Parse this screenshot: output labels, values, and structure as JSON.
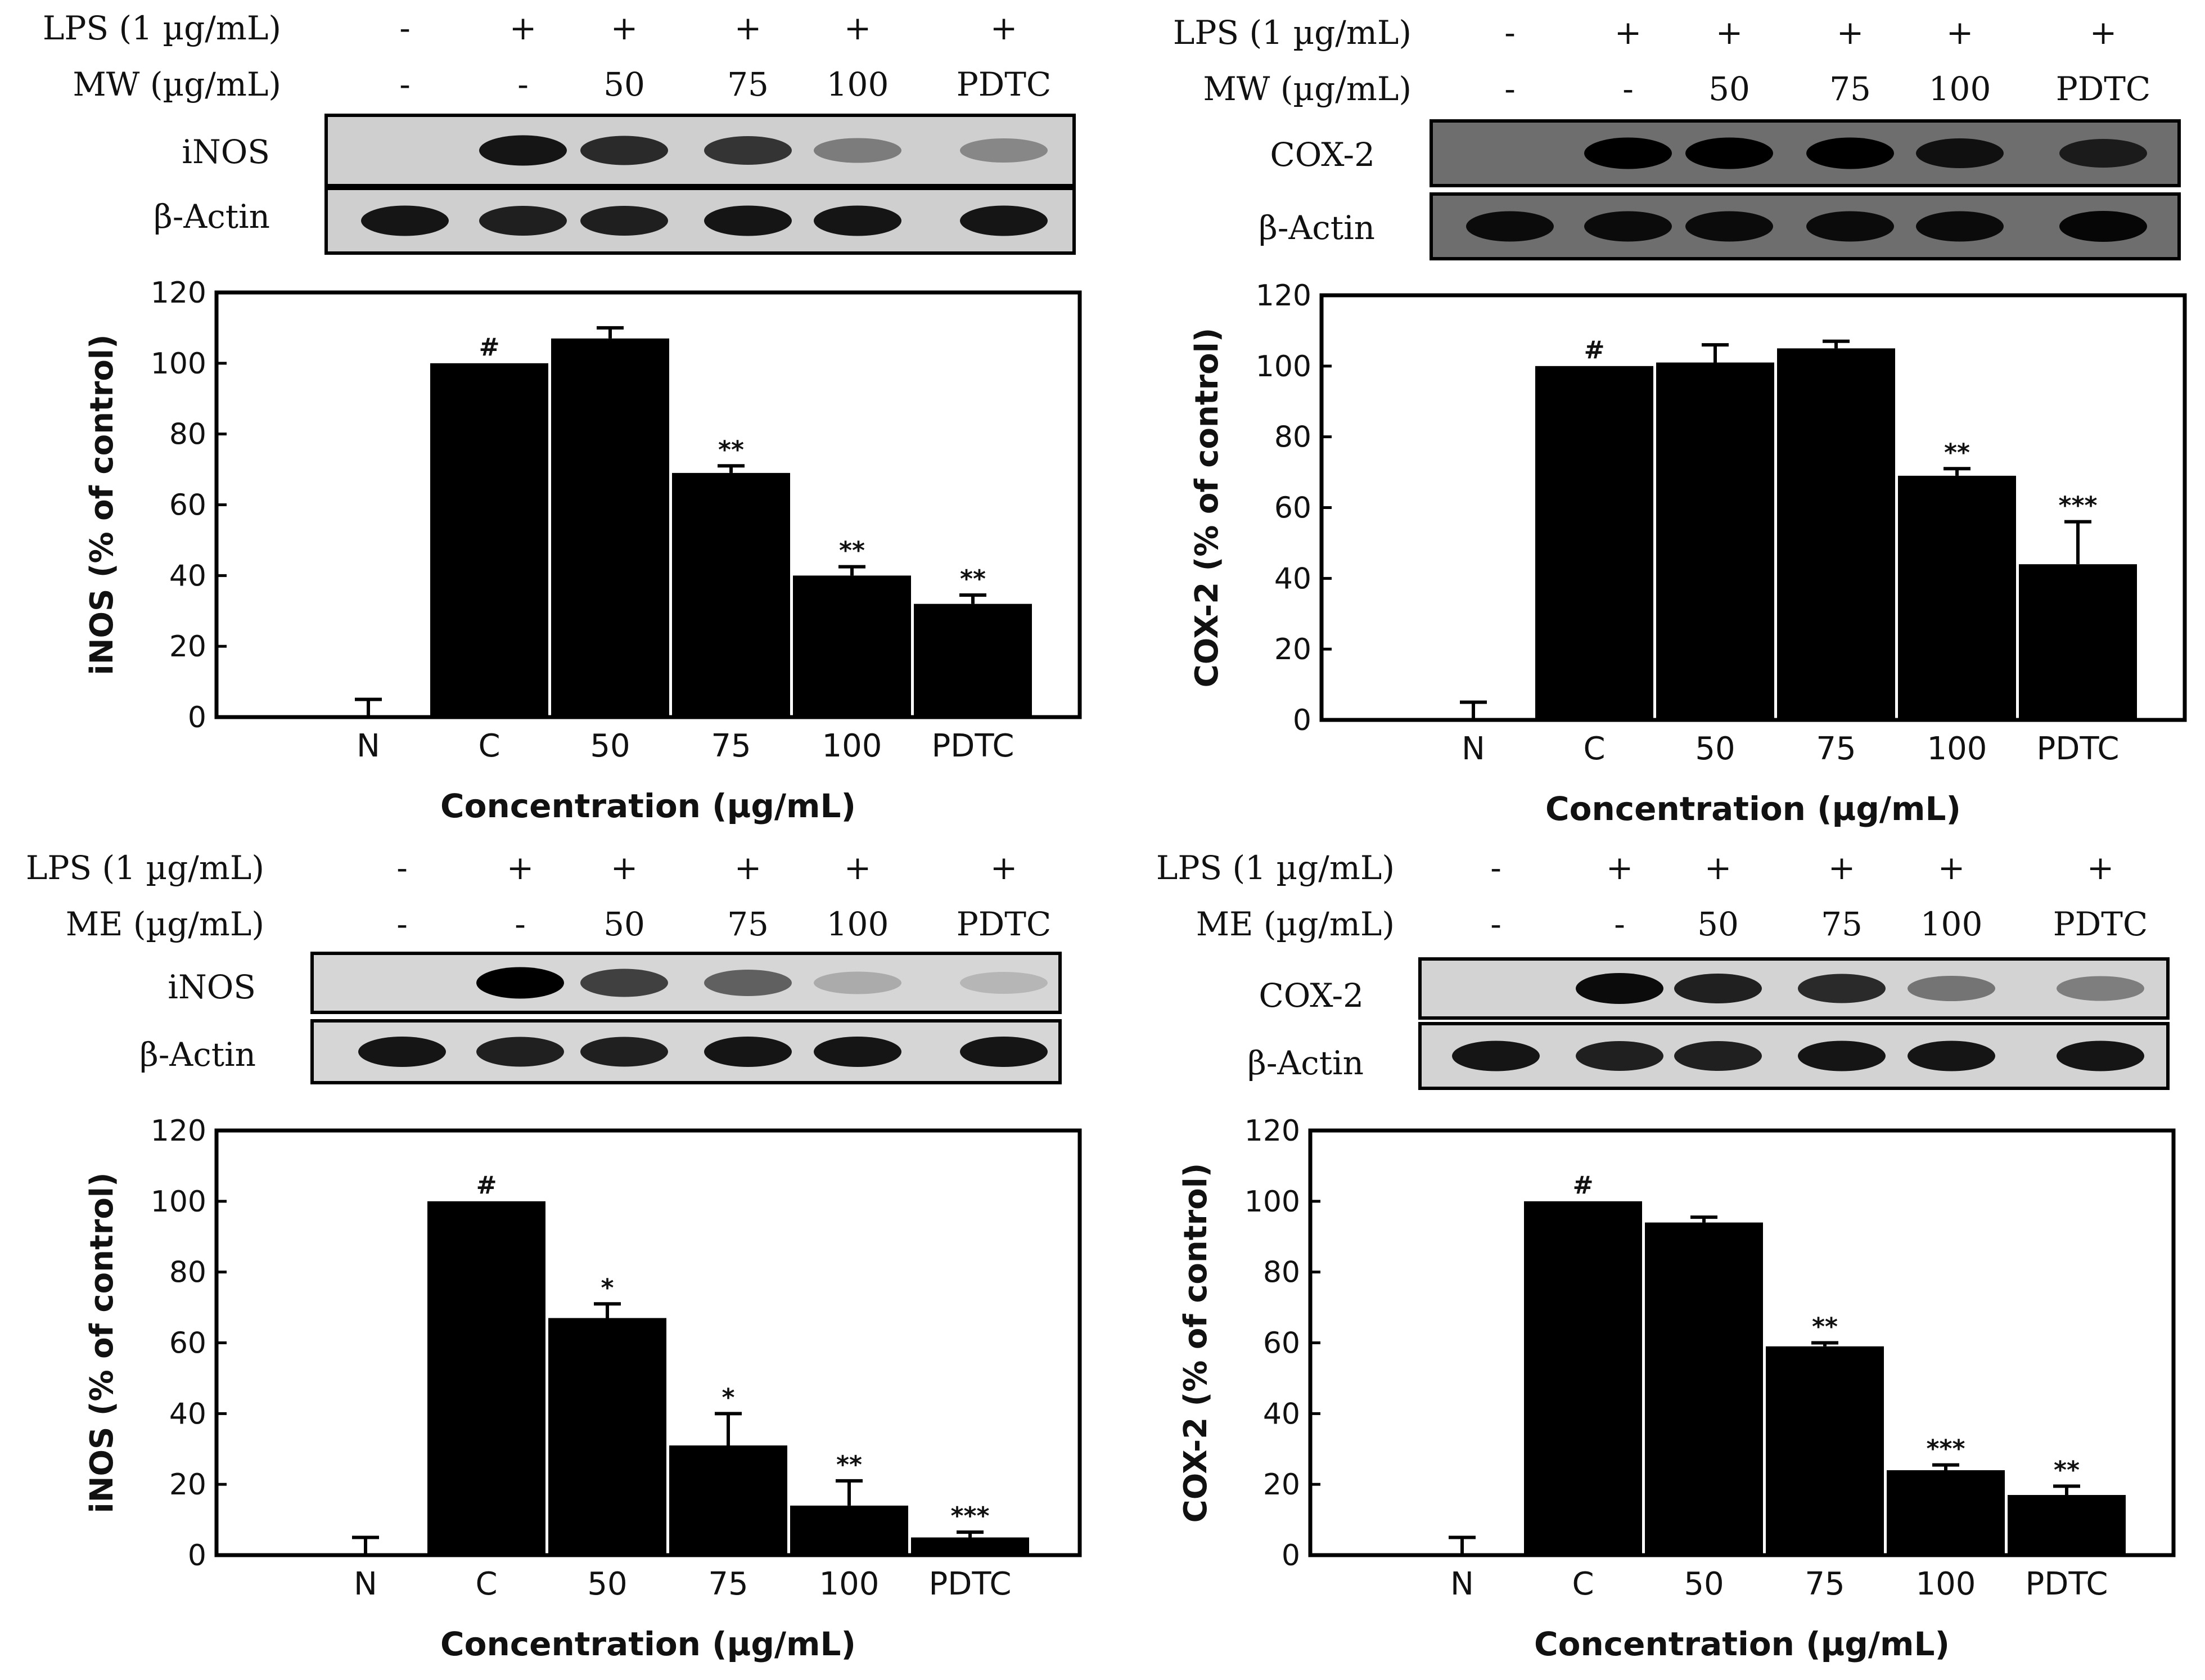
{
  "panels": [
    {
      "blot": {
        "rows": [
          {
            "label": "LPS (1 µg/mL)",
            "values": [
              "-",
              "+",
              "+",
              "+",
              "+",
              "+"
            ]
          },
          {
            "label": "MW (µg/mL)",
            "values": [
              "-",
              "-",
              "50",
              "75",
              "100",
              "PDTC"
            ]
          }
        ],
        "target_label": "iNOS",
        "actin_label": "β-Actin",
        "target_bands": [
          0,
          0.9,
          0.8,
          0.75,
          0.4,
          0.35
        ],
        "actin_bands": [
          0.9,
          0.85,
          0.85,
          0.9,
          0.9,
          0.9
        ],
        "background": "#cfcfcf"
      },
      "chart_data": {
        "type": "bar",
        "categories": [
          "N",
          "C",
          "50",
          "75",
          "100",
          "PDTC"
        ],
        "values": [
          0,
          100,
          107,
          69,
          40,
          32
        ],
        "errors": [
          5,
          0,
          3,
          2,
          2.5,
          2.5
        ],
        "annotations": [
          "",
          "#",
          "",
          "**",
          "**",
          "**"
        ],
        "ylabel": "iNOS (% of control)",
        "xlabel": "Concentration (µg/mL)",
        "yticks": [
          "0",
          "20",
          "40",
          "60",
          "80",
          "100",
          "120"
        ],
        "ylim": [
          0,
          120
        ]
      }
    },
    {
      "blot": {
        "rows": [
          {
            "label": "LPS (1 µg/mL)",
            "values": [
              "-",
              "+",
              "+",
              "+",
              "+",
              "+"
            ]
          },
          {
            "label": "MW (µg/mL)",
            "values": [
              "-",
              "-",
              "50",
              "75",
              "100",
              "PDTC"
            ]
          }
        ],
        "target_label": "COX-2",
        "actin_label": "β-Actin",
        "target_bands": [
          0,
          1,
          1,
          1,
          0.85,
          0.75
        ],
        "actin_bands": [
          0.9,
          0.9,
          0.9,
          0.9,
          0.9,
          0.95
        ],
        "background": "#6e6e6e"
      },
      "chart_data": {
        "type": "bar",
        "categories": [
          "N",
          "C",
          "50",
          "75",
          "100",
          "PDTC"
        ],
        "values": [
          0,
          100,
          101,
          105,
          69,
          44
        ],
        "errors": [
          5,
          0,
          5,
          2,
          2,
          12
        ],
        "annotations": [
          "",
          "#",
          "",
          "",
          "**",
          "***"
        ],
        "ylabel": "COX-2 (% of control)",
        "xlabel": "Concentration (µg/mL)",
        "yticks": [
          "0",
          "20",
          "40",
          "60",
          "80",
          "100",
          "120"
        ],
        "ylim": [
          0,
          120
        ]
      }
    },
    {
      "blot": {
        "rows": [
          {
            "label": "LPS (1 µg/mL)",
            "values": [
              "-",
              "+",
              "+",
              "+",
              "+",
              "+"
            ]
          },
          {
            "label": "ME  (µg/mL)",
            "values": [
              "-",
              "-",
              "50",
              "75",
              "100",
              "PDTC"
            ]
          }
        ],
        "target_label": "iNOS",
        "actin_label": "β-Actin",
        "target_bands": [
          0,
          1,
          0.7,
          0.55,
          0.2,
          0.15
        ],
        "actin_bands": [
          0.9,
          0.85,
          0.85,
          0.9,
          0.9,
          0.9
        ],
        "background": "#d6d6d6"
      },
      "chart_data": {
        "type": "bar",
        "categories": [
          "N",
          "C",
          "50",
          "75",
          "100",
          "PDTC"
        ],
        "values": [
          0,
          100,
          67,
          31,
          14,
          5
        ],
        "errors": [
          5,
          0,
          4,
          9,
          7,
          1.5
        ],
        "annotations": [
          "",
          "#",
          "*",
          "*",
          "**",
          "***"
        ],
        "ylabel": "iNOS (% of control)",
        "xlabel": "Concentration (µg/mL)",
        "yticks": [
          "0",
          "20",
          "40",
          "60",
          "80",
          "100",
          "120"
        ],
        "ylim": [
          0,
          120
        ]
      }
    },
    {
      "blot": {
        "rows": [
          {
            "label": "LPS (1 µg/mL)",
            "values": [
              "-",
              "+",
              "+",
              "+",
              "+",
              "+"
            ]
          },
          {
            "label": "ME  (µg/mL)",
            "values": [
              "-",
              "-",
              "50",
              "75",
              "100",
              "PDTC"
            ]
          }
        ],
        "target_label": "COX-2",
        "actin_label": "β-Actin",
        "target_bands": [
          0,
          0.95,
          0.85,
          0.8,
          0.45,
          0.4
        ],
        "actin_bands": [
          0.9,
          0.85,
          0.85,
          0.9,
          0.9,
          0.9
        ],
        "background": "#d3d3d3"
      },
      "chart_data": {
        "type": "bar",
        "categories": [
          "N",
          "C",
          "50",
          "75",
          "100",
          "PDTC"
        ],
        "values": [
          0,
          100,
          94,
          59,
          24,
          17
        ],
        "errors": [
          5,
          0,
          1.5,
          1,
          1.5,
          2.5
        ],
        "annotations": [
          "",
          "#",
          "",
          "**",
          "***",
          "**"
        ],
        "ylabel": "COX-2 (% of control)",
        "xlabel": "Concentration (µg/mL)",
        "yticks": [
          "0",
          "20",
          "40",
          "60",
          "80",
          "100",
          "120"
        ],
        "ylim": [
          0,
          120
        ]
      }
    }
  ]
}
